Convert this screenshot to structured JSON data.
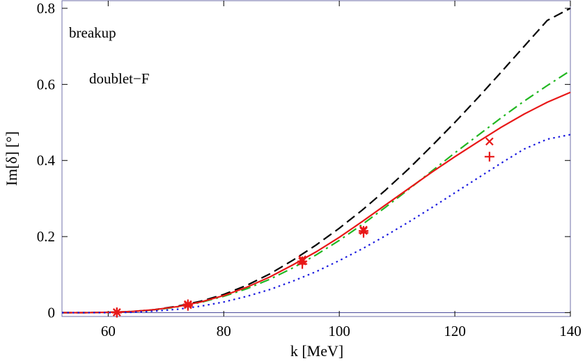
{
  "chart_data": {
    "type": "line",
    "xlabel": "k [MeV]",
    "ylabel": "Im[δ] [°]",
    "xlim": [
      52,
      140
    ],
    "ylim": [
      -0.01,
      0.82
    ],
    "x_ticks": [
      60,
      80,
      100,
      120,
      140
    ],
    "y_ticks": [
      0,
      0.2,
      0.4,
      0.6,
      0.8
    ],
    "x_tick_labels": [
      "60",
      "80",
      "100",
      "120",
      "140"
    ],
    "y_tick_labels": [
      "0",
      "0.2",
      "0.4",
      "0.6",
      "0.8"
    ],
    "annotations": [
      "breakup",
      "doublet−F"
    ],
    "series": [
      {
        "name": "black dashed",
        "style": "dashed",
        "color": "#000000",
        "x": [
          52,
          56,
          60,
          64,
          68,
          72,
          76,
          80,
          84,
          88,
          92,
          96,
          100,
          104,
          108,
          112,
          116,
          120,
          124,
          128,
          132,
          136,
          140
        ],
        "y": [
          0,
          0,
          0.001,
          0.003,
          0.008,
          0.017,
          0.03,
          0.048,
          0.072,
          0.102,
          0.138,
          0.178,
          0.222,
          0.27,
          0.322,
          0.378,
          0.438,
          0.5,
          0.565,
          0.632,
          0.7,
          0.768,
          0.8
        ]
      },
      {
        "name": "green dash-dot",
        "style": "dashdot",
        "color": "#22b722",
        "x": [
          52,
          56,
          60,
          64,
          68,
          72,
          76,
          80,
          84,
          88,
          92,
          96,
          100,
          104,
          108,
          112,
          116,
          120,
          124,
          128,
          132,
          136,
          140
        ],
        "y": [
          0,
          0,
          0.001,
          0.003,
          0.007,
          0.015,
          0.027,
          0.043,
          0.063,
          0.088,
          0.118,
          0.152,
          0.19,
          0.232,
          0.277,
          0.324,
          0.372,
          0.42,
          0.466,
          0.512,
          0.556,
          0.597,
          0.636
        ]
      },
      {
        "name": "red solid",
        "style": "solid",
        "color": "#e81818",
        "x": [
          52,
          56,
          60,
          64,
          68,
          72,
          76,
          80,
          84,
          88,
          92,
          96,
          100,
          104,
          108,
          112,
          116,
          120,
          124,
          128,
          132,
          136,
          140
        ],
        "y": [
          0,
          0,
          0.001,
          0.003,
          0.008,
          0.016,
          0.028,
          0.045,
          0.067,
          0.094,
          0.126,
          0.16,
          0.198,
          0.24,
          0.283,
          0.326,
          0.369,
          0.41,
          0.449,
          0.487,
          0.522,
          0.553,
          0.579
        ]
      },
      {
        "name": "blue dotted",
        "style": "dotted",
        "color": "#1a1adf",
        "x": [
          52,
          56,
          60,
          64,
          68,
          72,
          76,
          80,
          84,
          88,
          92,
          96,
          100,
          104,
          108,
          112,
          116,
          120,
          124,
          128,
          132,
          136,
          140
        ],
        "y": [
          0,
          0,
          0,
          0.001,
          0.004,
          0.009,
          0.017,
          0.028,
          0.043,
          0.061,
          0.083,
          0.108,
          0.137,
          0.168,
          0.202,
          0.238,
          0.276,
          0.315,
          0.354,
          0.393,
          0.43,
          0.456,
          0.468
        ]
      }
    ],
    "markers": [
      {
        "name": "asterisk",
        "symbol": "asterisk",
        "color": "#e81818",
        "points": [
          [
            61.5,
            0.001
          ],
          [
            73.8,
            0.022
          ],
          [
            93.6,
            0.135
          ],
          [
            104.2,
            0.215
          ]
        ]
      },
      {
        "name": "cross",
        "symbol": "x",
        "color": "#e81818",
        "points": [
          [
            61.5,
            0.001
          ],
          [
            73.8,
            0.02
          ],
          [
            93.6,
            0.14
          ],
          [
            104.2,
            0.218
          ],
          [
            126,
            0.45
          ]
        ]
      },
      {
        "name": "plus",
        "symbol": "plus",
        "color": "#e81818",
        "points": [
          [
            61.5,
            0.0
          ],
          [
            73.8,
            0.018
          ],
          [
            93.6,
            0.128
          ],
          [
            104.2,
            0.21
          ],
          [
            126,
            0.41
          ]
        ]
      }
    ]
  }
}
